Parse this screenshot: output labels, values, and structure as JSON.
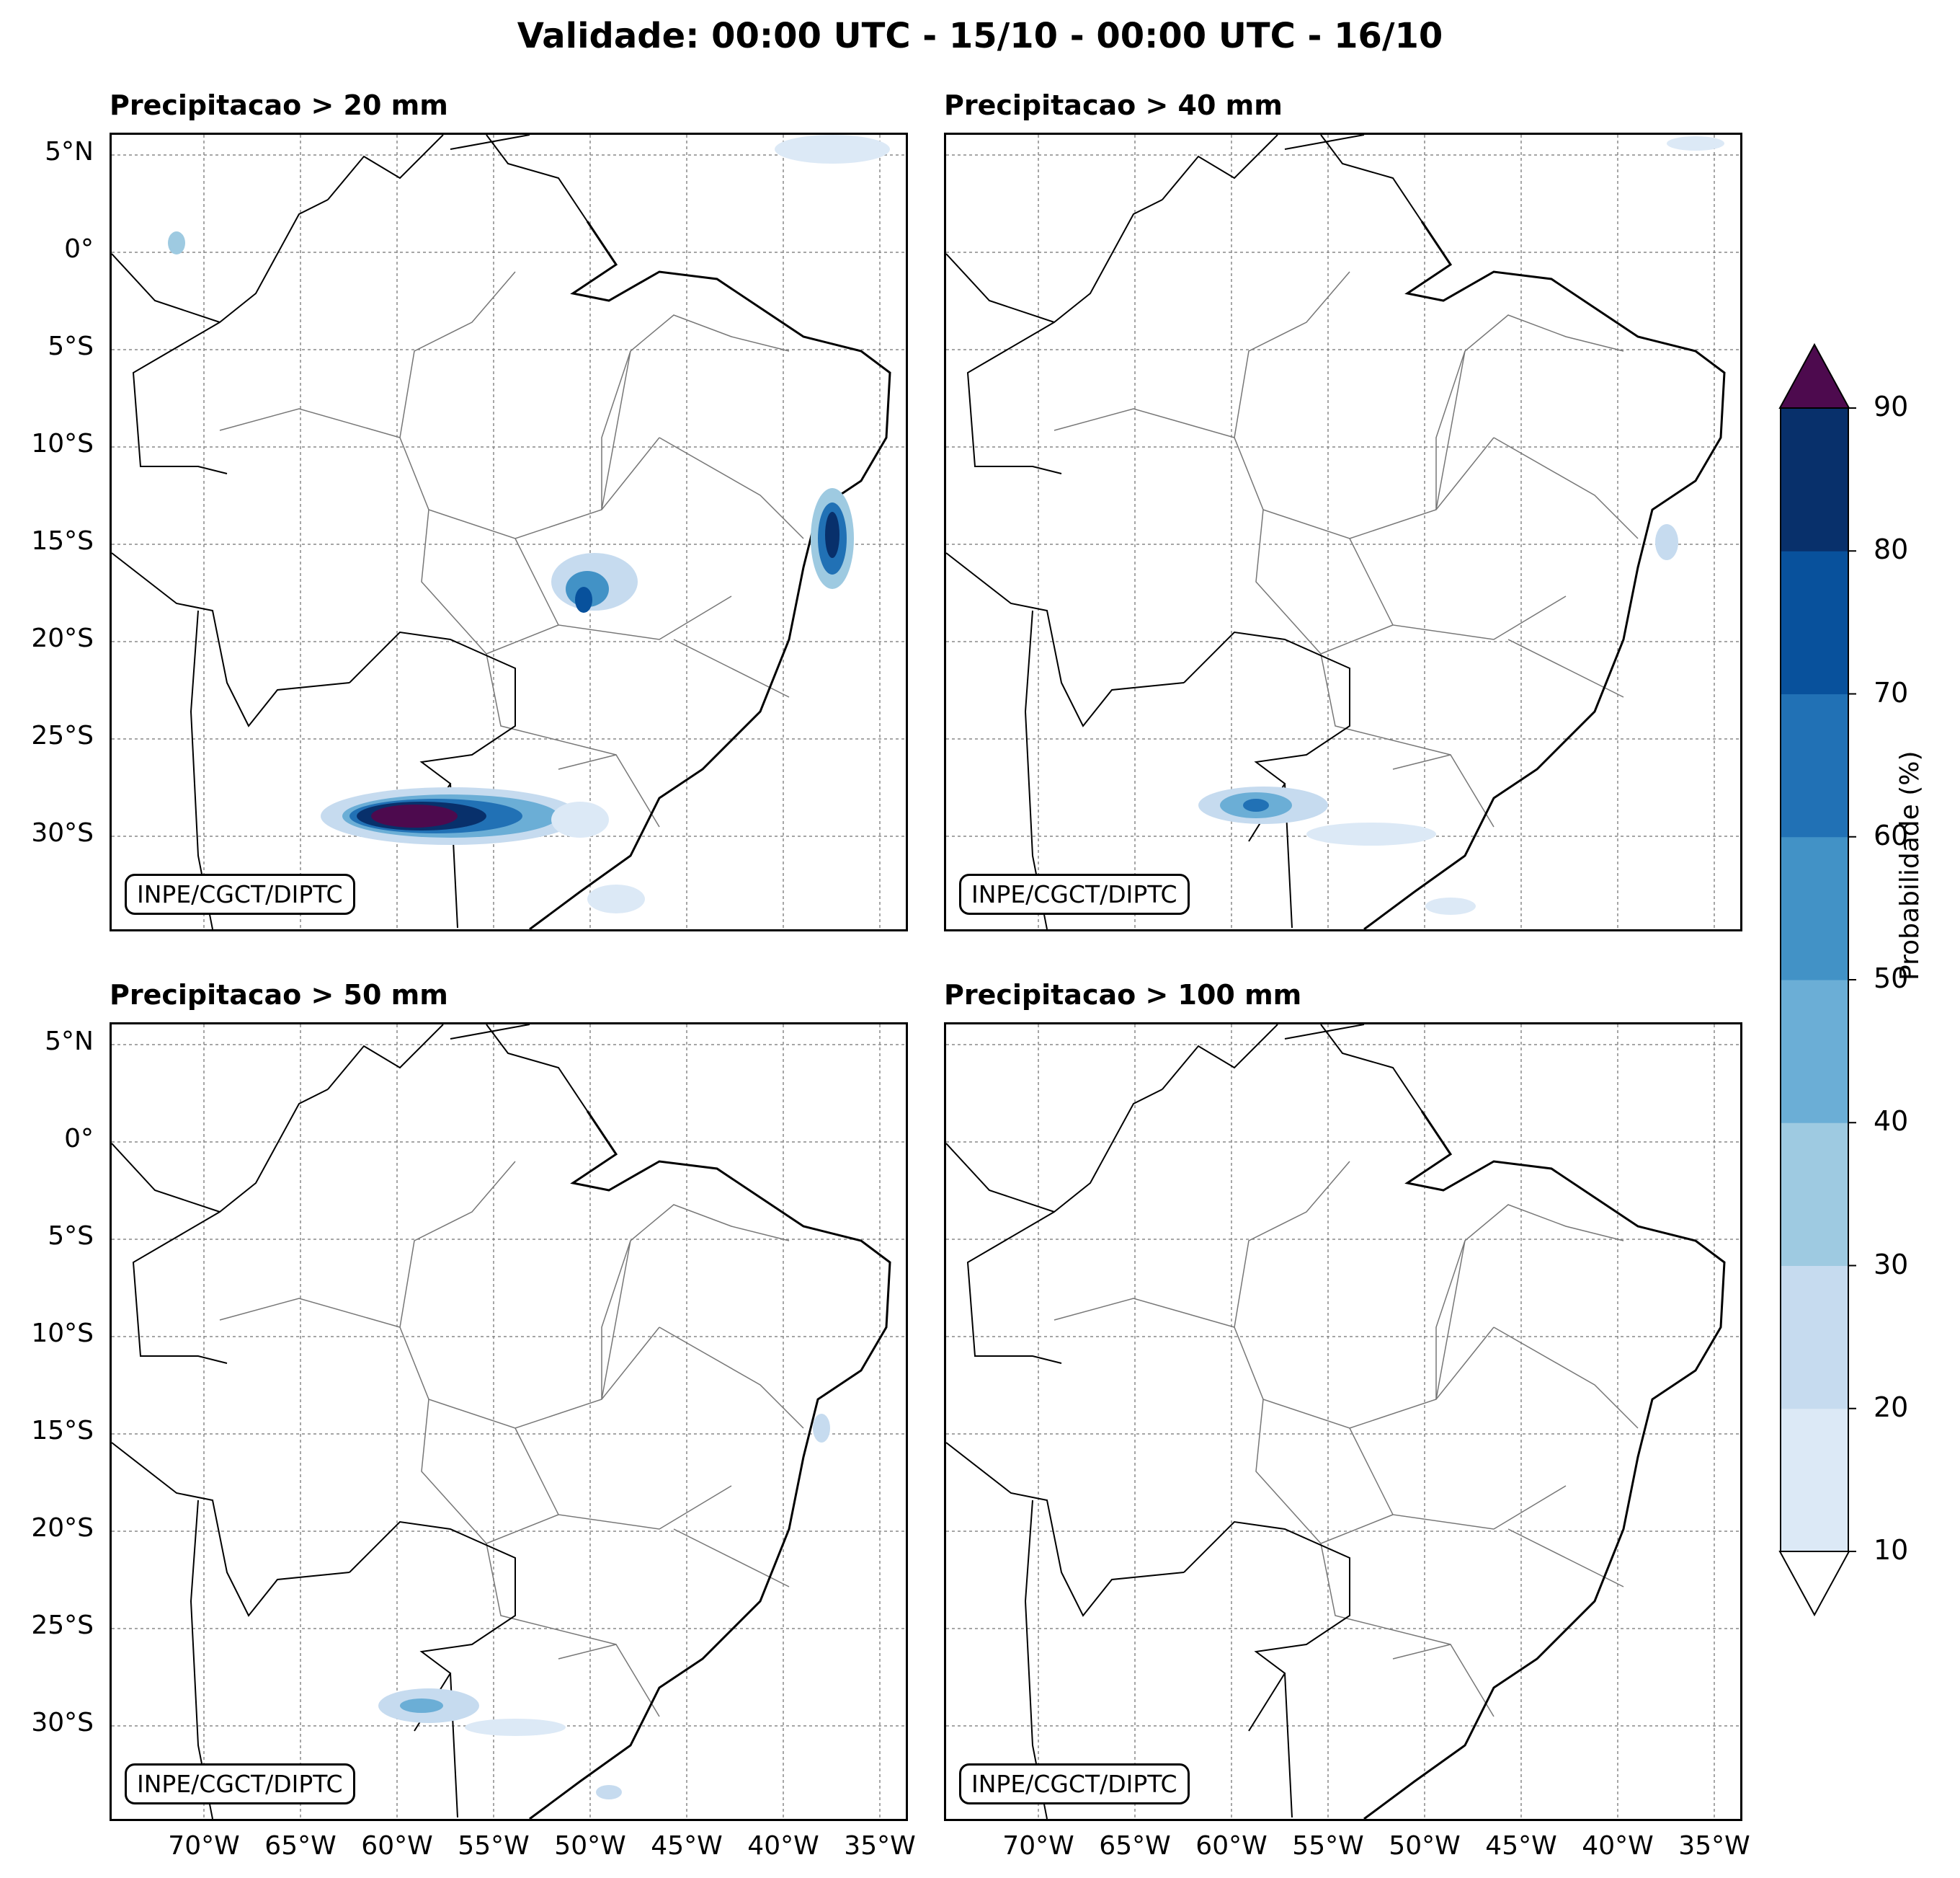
{
  "title": "Validade: 00:00 UTC - 15/10 - 00:00 UTC - 16/10",
  "credit": "INPE/CGCT/DIPTC",
  "panels": [
    {
      "title": "Precipitacao > 20 mm"
    },
    {
      "title": "Precipitacao > 40 mm"
    },
    {
      "title": "Precipitacao > 50 mm"
    },
    {
      "title": "Precipitacao > 100 mm"
    }
  ],
  "lat_ticks": [
    "5°N",
    "0°",
    "5°S",
    "10°S",
    "15°S",
    "20°S",
    "25°S",
    "30°S"
  ],
  "lon_ticks": [
    "70°W",
    "65°W",
    "60°W",
    "55°W",
    "50°W",
    "45°W",
    "40°W",
    "35°W"
  ],
  "colorbar": {
    "label": "Probabilidade (%)",
    "ticks": [
      "10",
      "20",
      "30",
      "40",
      "50",
      "60",
      "70",
      "80",
      "90"
    ],
    "colors": [
      "#dce9f6",
      "#c6dbef",
      "#9ecae1",
      "#6baed6",
      "#4292c6",
      "#2171b5",
      "#08519c",
      "#08306b"
    ],
    "over_color": "#4d0a4e",
    "under_color": "#ffffff"
  }
}
